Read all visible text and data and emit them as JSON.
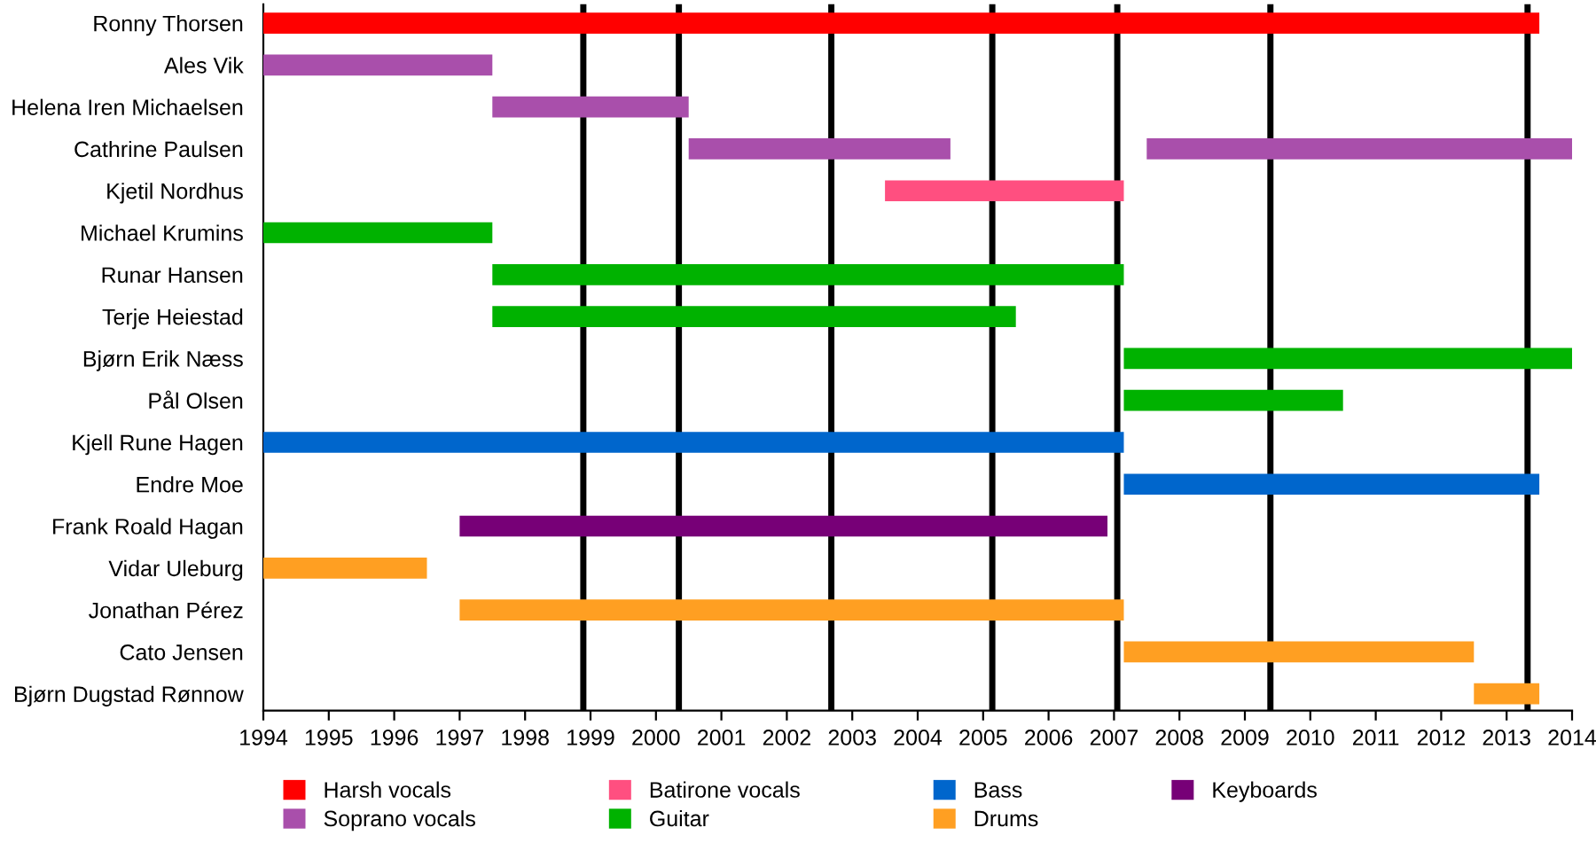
{
  "chart_data": {
    "type": "bar",
    "orientation": "horizontal",
    "categories": [
      "Ronny Thorsen",
      "Ales Vik",
      "Helena Iren Michaelsen",
      "Cathrine Paulsen",
      "Kjetil Nordhus",
      "Michael Krumins",
      "Runar Hansen",
      "Terje Heiestad",
      "Bjørn Erik Næss",
      "Pål Olsen",
      "Kjell Rune Hagen",
      "Endre Moe",
      "Frank Roald Hagan",
      "Vidar Uleburg",
      "Jonathan Pérez",
      "Cato Jensen",
      "Bjørn Dugstad Rønnow"
    ],
    "series": [
      {
        "name": "Harsh vocals",
        "color": "#ff0000",
        "base": [
          1994,
          null,
          null,
          null,
          null,
          null,
          null,
          null,
          null,
          null,
          null,
          null,
          null,
          null,
          null,
          null,
          null
        ],
        "values": [
          19.5,
          null,
          null,
          null,
          null,
          null,
          null,
          null,
          null,
          null,
          null,
          null,
          null,
          null,
          null,
          null,
          null
        ]
      },
      {
        "name": "Soprano vocals",
        "color": "#a94fab",
        "base": [
          null,
          1994,
          1997.5,
          2000.5,
          null,
          null,
          null,
          null,
          null,
          null,
          null,
          null,
          null,
          null,
          null,
          null,
          null
        ],
        "values": [
          null,
          3.5,
          3,
          4,
          null,
          null,
          null,
          null,
          null,
          null,
          null,
          null,
          null,
          null,
          null,
          null,
          null
        ]
      },
      {
        "name": "Batirone vocals",
        "color": "#ff4f80",
        "base": [
          null,
          null,
          null,
          null,
          2003.5,
          null,
          null,
          null,
          null,
          null,
          null,
          null,
          null,
          null,
          null,
          null,
          null
        ],
        "values": [
          null,
          null,
          null,
          null,
          3.65,
          null,
          null,
          null,
          null,
          null,
          null,
          null,
          null,
          null,
          null,
          null,
          null
        ]
      },
      {
        "name": "Guitar",
        "color": "#00b200",
        "base": [
          null,
          null,
          null,
          null,
          null,
          1994,
          1997.5,
          1997.5,
          2007.15,
          2007.15,
          null,
          null,
          null,
          null,
          null,
          null,
          null
        ],
        "values": [
          null,
          null,
          null,
          null,
          null,
          3.5,
          9.65,
          8,
          6.85,
          3.35,
          null,
          null,
          null,
          null,
          null,
          null,
          null
        ]
      },
      {
        "name": "Bass",
        "color": "#0066cc",
        "base": [
          null,
          null,
          null,
          null,
          null,
          null,
          null,
          null,
          null,
          null,
          1994,
          2007.15,
          null,
          null,
          null,
          null,
          null
        ],
        "values": [
          null,
          null,
          null,
          null,
          null,
          null,
          null,
          null,
          null,
          null,
          13.15,
          6.35,
          null,
          null,
          null,
          null,
          null
        ]
      },
      {
        "name": "Drums",
        "color": "#ff9f22",
        "base": [
          null,
          null,
          null,
          null,
          null,
          null,
          null,
          null,
          null,
          null,
          null,
          null,
          null,
          1994,
          1997,
          2007.15,
          2012.5
        ],
        "values": [
          null,
          null,
          null,
          null,
          null,
          null,
          null,
          null,
          null,
          null,
          null,
          null,
          null,
          2.5,
          10.15,
          5.35,
          1
        ]
      },
      {
        "name": "Keyboards",
        "color": "#770077",
        "base": [
          null,
          null,
          null,
          null,
          null,
          null,
          null,
          null,
          null,
          null,
          null,
          null,
          1997,
          null,
          null,
          null,
          null
        ],
        "values": [
          null,
          null,
          null,
          null,
          null,
          null,
          null,
          null,
          null,
          null,
          null,
          null,
          9.9,
          null,
          null,
          null,
          null
        ]
      },
      {
        "color": "#a94fab",
        "base": [
          null,
          null,
          null,
          2007.5,
          null,
          null,
          null,
          null,
          null,
          null,
          null,
          null,
          null,
          null,
          null,
          null,
          null
        ],
        "values": [
          null,
          null,
          null,
          6.5,
          null,
          null,
          null,
          null,
          null,
          null,
          null,
          null,
          null,
          null,
          null,
          null,
          null
        ]
      }
    ],
    "xlim": [
      1994,
      2014
    ],
    "xticks": [
      1994,
      1995,
      1996,
      1997,
      1998,
      1999,
      2000,
      2001,
      2002,
      2003,
      2004,
      2005,
      2006,
      2007,
      2008,
      2009,
      2010,
      2011,
      2012,
      2013,
      2014
    ],
    "ref_lines": [
      {
        "axis": "x",
        "value": 1998.89,
        "color": "#000000"
      },
      {
        "axis": "x",
        "value": 2000.35,
        "color": "#000000"
      },
      {
        "axis": "x",
        "value": 2002.68,
        "color": "#000000"
      },
      {
        "axis": "x",
        "value": 2005.14,
        "color": "#000000"
      },
      {
        "axis": "x",
        "value": 2007.05,
        "color": "#000000"
      },
      {
        "axis": "x",
        "value": 2009.39,
        "color": "#000000"
      },
      {
        "axis": "x",
        "value": 2013.32,
        "color": "#000000"
      }
    ],
    "grid": false,
    "legend": "bottom"
  }
}
